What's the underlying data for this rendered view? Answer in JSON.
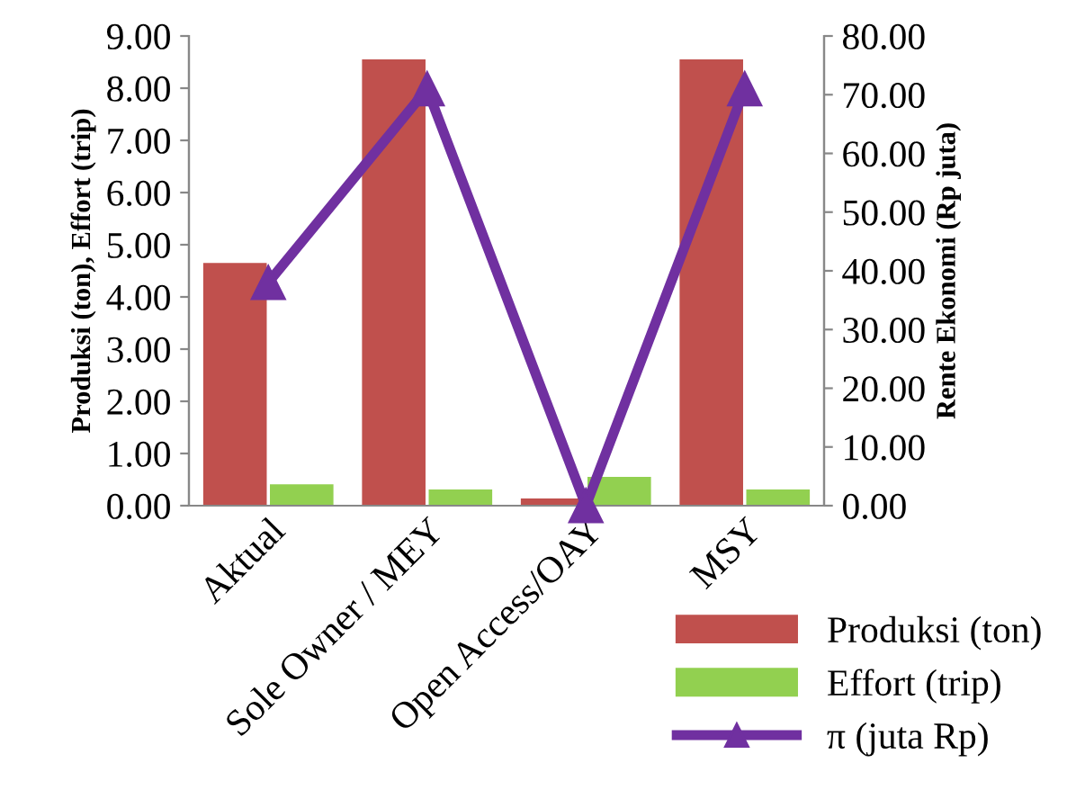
{
  "chart_data": {
    "type": "bar",
    "ylabel": "Produksi (ton), Effort (trip)",
    "y2label": "Rente Ekonomi (Rp juta)",
    "categories": [
      "Aktual",
      "Sole Owner / MEY",
      "Open Access/OAY",
      "MSY"
    ],
    "series": [
      {
        "name": "Produksi (ton)",
        "color": "#c0504d",
        "values": [
          4.65,
          8.55,
          0.14,
          8.55
        ]
      },
      {
        "name": "Effort (trip)",
        "color": "#92d050",
        "values": [
          0.41,
          0.31,
          0.55,
          0.31
        ]
      },
      {
        "name": "π (juta Rp)",
        "type": "line",
        "axis": "y2",
        "color": "#7030a0",
        "marker": "triangle",
        "values": [
          38,
          71,
          0,
          71
        ]
      }
    ],
    "ylim": [
      0,
      9
    ],
    "yticks": [
      {
        "value": 0,
        "label": "0.00"
      },
      {
        "value": 1,
        "label": "1.00"
      },
      {
        "value": 2,
        "label": "2.00"
      },
      {
        "value": 3,
        "label": "3.00"
      },
      {
        "value": 4,
        "label": "4.00"
      },
      {
        "value": 5,
        "label": "5.00"
      },
      {
        "value": 6,
        "label": "6.00"
      },
      {
        "value": 7,
        "label": "7.00"
      },
      {
        "value": 8,
        "label": "8.00"
      },
      {
        "value": 9,
        "label": "9.00"
      }
    ],
    "y2lim": [
      0,
      80
    ],
    "y2ticks": [
      {
        "value": 0,
        "label": "0.00"
      },
      {
        "value": 10,
        "label": "10.00"
      },
      {
        "value": 20,
        "label": "20.00"
      },
      {
        "value": 30,
        "label": "30.00"
      },
      {
        "value": 40,
        "label": "40.00"
      },
      {
        "value": 50,
        "label": "50.00"
      },
      {
        "value": 60,
        "label": "60.00"
      },
      {
        "value": 70,
        "label": "70.00"
      },
      {
        "value": 80,
        "label": "80.00"
      }
    ],
    "legend": "bottom right",
    "grid": false
  }
}
